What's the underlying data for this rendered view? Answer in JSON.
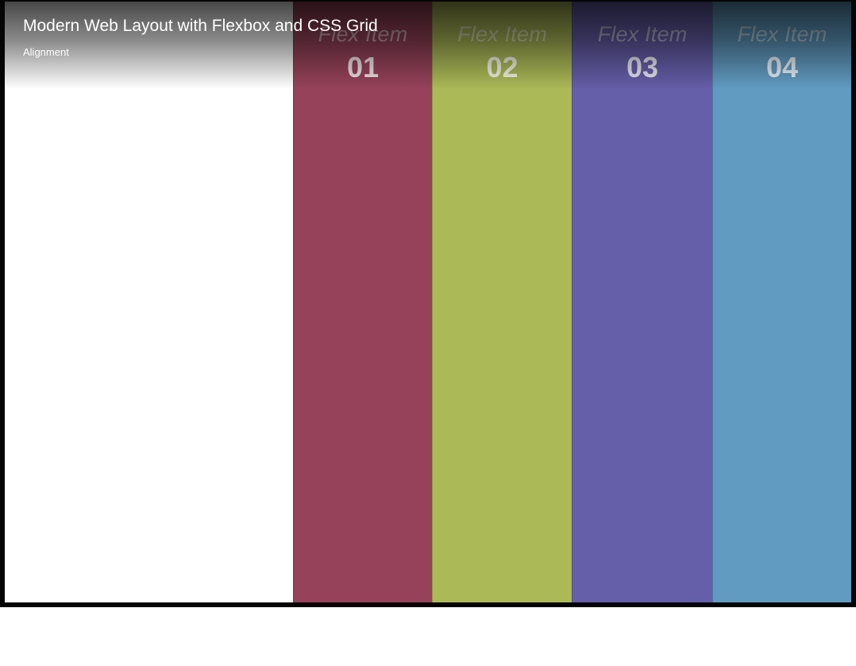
{
  "video": {
    "title": "Modern Web Layout with Flexbox and CSS Grid",
    "subtitle": "Alignment"
  },
  "flex_items": [
    {
      "caption": "Flex Item",
      "number": "01",
      "color": "#96425a"
    },
    {
      "caption": "Flex Item",
      "number": "02",
      "color": "#acb957"
    },
    {
      "caption": "Flex Item",
      "number": "03",
      "color": "#655ea8"
    },
    {
      "caption": "Flex Item",
      "number": "04",
      "color": "#619bc1"
    }
  ]
}
